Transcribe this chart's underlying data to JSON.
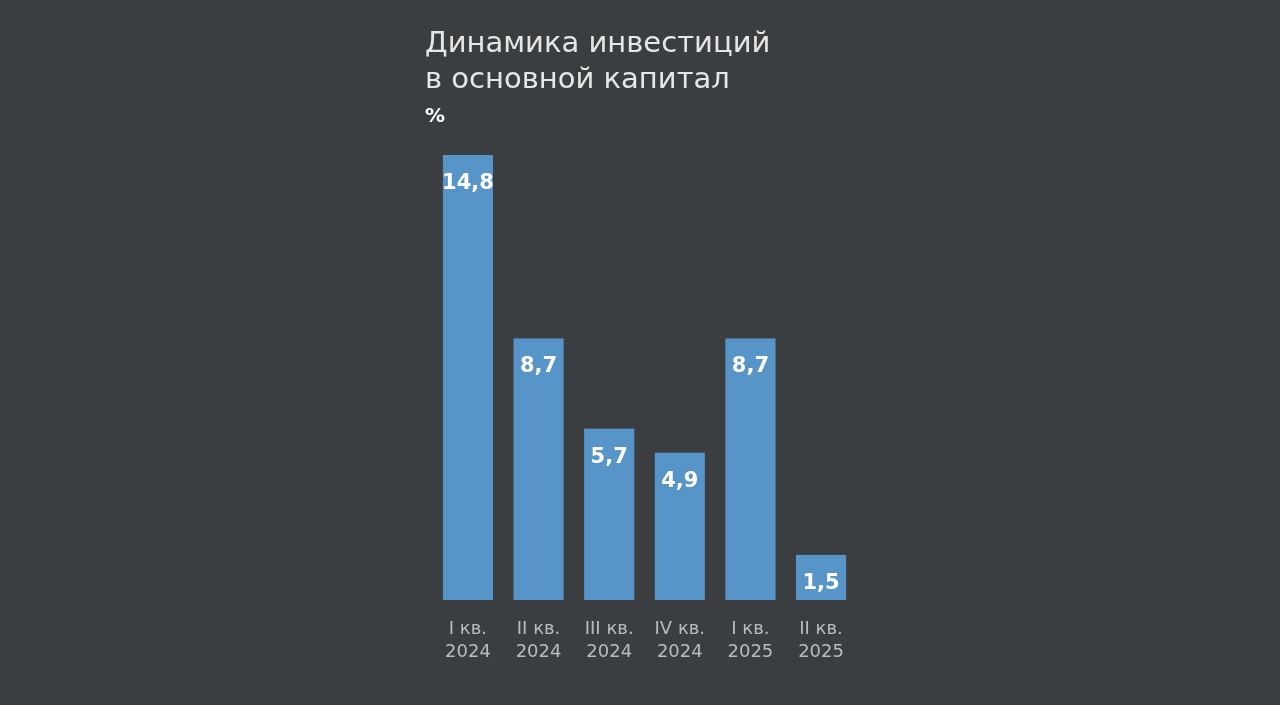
{
  "chart_data": {
    "type": "bar",
    "title": "Динамика инвестиций\nв основной капитал",
    "subtitle": "%",
    "categories": [
      "I кв.\n2024",
      "II кв.\n2024",
      "III кв.\n2024",
      "IV кв.\n2024",
      "I кв.\n2025",
      "II кв.\n2025"
    ],
    "values": [
      14.8,
      8.7,
      5.7,
      4.9,
      8.7,
      1.5
    ],
    "value_labels": [
      "14,8",
      "8,7",
      "5,7",
      "4,9",
      "8,7",
      "1,5"
    ],
    "color": "#5b9dd6"
  }
}
